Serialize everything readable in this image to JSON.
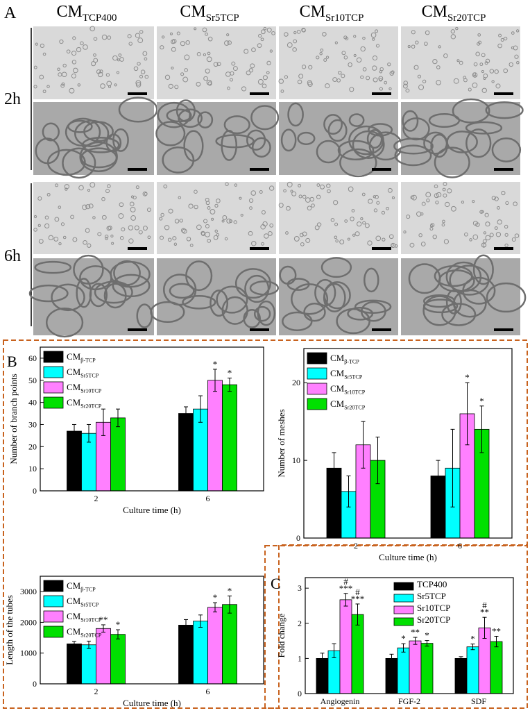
{
  "panel_A": {
    "label": "A",
    "columns": [
      {
        "main": "CM",
        "sub": "TCP400"
      },
      {
        "main": "CM",
        "sub": "Sr5TCP"
      },
      {
        "main": "CM",
        "sub": "Sr10TCP"
      },
      {
        "main": "CM",
        "sub": "Sr20TCP"
      }
    ],
    "rows": [
      "2h",
      "6h"
    ]
  },
  "chart_data": [
    {
      "type": "bar",
      "panel": "B",
      "y_label": "Number of branch points",
      "x_label": "Culture time (h)",
      "categories": [
        "2",
        "6"
      ],
      "ylim": [
        0,
        65
      ],
      "yticks": [
        0,
        10,
        20,
        30,
        40,
        50,
        60
      ],
      "series": [
        {
          "name": "CM",
          "name_sub": "β-TCP",
          "color": "#000000",
          "values": [
            27,
            35
          ],
          "errors": [
            3,
            3
          ],
          "annotations": [
            null,
            null
          ]
        },
        {
          "name": "CM",
          "name_sub": "Sr5TCP",
          "color": "#00ffff",
          "values": [
            26,
            37
          ],
          "errors": [
            4,
            6
          ],
          "annotations": [
            null,
            null
          ]
        },
        {
          "name": "CM",
          "name_sub": "Sr10TCP",
          "color": "#ff80ff",
          "values": [
            31,
            50
          ],
          "errors": [
            6,
            5
          ],
          "annotations": [
            null,
            [
              "*"
            ]
          ]
        },
        {
          "name": "CM",
          "name_sub": "Sr20TCP",
          "color": "#00e000",
          "values": [
            33,
            48
          ],
          "errors": [
            4,
            3
          ],
          "annotations": [
            null,
            [
              "*"
            ]
          ]
        }
      ]
    },
    {
      "type": "bar",
      "y_label": "Number of meshes",
      "x_label": "Culture time (h)",
      "categories": [
        "2",
        "6"
      ],
      "ylim": [
        0,
        24.4
      ],
      "yticks": [
        0,
        10,
        20
      ],
      "series": [
        {
          "name": "CM",
          "name_sub": "β-TCP",
          "color": "#000000",
          "values": [
            9,
            8
          ],
          "errors": [
            2,
            2
          ],
          "annotations": [
            null,
            null
          ]
        },
        {
          "name": "CM",
          "name_sub": "Sr5TCP",
          "color": "#00ffff",
          "values": [
            6,
            9
          ],
          "errors": [
            2,
            5
          ],
          "annotations": [
            null,
            null
          ]
        },
        {
          "name": "CM",
          "name_sub": "Sr10TCP",
          "color": "#ff80ff",
          "values": [
            12,
            16
          ],
          "errors": [
            3,
            4
          ],
          "annotations": [
            null,
            [
              "*"
            ]
          ]
        },
        {
          "name": "CM",
          "name_sub": "Sr20TCP",
          "color": "#00e000",
          "values": [
            10,
            14
          ],
          "errors": [
            3,
            3
          ],
          "annotations": [
            null,
            [
              "*"
            ]
          ]
        }
      ]
    },
    {
      "type": "bar",
      "y_label": "Length of the tubes",
      "x_label": "Culture time (h)",
      "categories": [
        "2",
        "6"
      ],
      "ylim": [
        0,
        3500
      ],
      "yticks": [
        0,
        1000,
        2000,
        3000
      ],
      "series": [
        {
          "name": "CM",
          "name_sub": "β-TCP",
          "color": "#000000",
          "values": [
            1300,
            1910
          ],
          "errors": [
            80,
            180
          ],
          "annotations": [
            null,
            null
          ]
        },
        {
          "name": "CM",
          "name_sub": "Sr5TCP",
          "color": "#00ffff",
          "values": [
            1270,
            2040
          ],
          "errors": [
            120,
            200
          ],
          "annotations": [
            null,
            null
          ]
        },
        {
          "name": "CM",
          "name_sub": "Sr10TCP",
          "color": "#ff80ff",
          "values": [
            1800,
            2490
          ],
          "errors": [
            120,
            150
          ],
          "annotations": [
            [
              "**"
            ],
            [
              "*"
            ]
          ]
        },
        {
          "name": "CM",
          "name_sub": "Sr20TCP",
          "color": "#00e000",
          "values": [
            1610,
            2580
          ],
          "errors": [
            150,
            280
          ],
          "annotations": [
            [
              "*"
            ],
            [
              "*"
            ]
          ]
        }
      ]
    },
    {
      "type": "bar",
      "panel": "C",
      "y_label": "Fold change",
      "categories": [
        "Angiogenin",
        "FGF-2",
        "SDF"
      ],
      "ylim": [
        0,
        3.3
      ],
      "yticks": [
        0,
        1,
        2,
        3
      ],
      "series": [
        {
          "name": "TCP400",
          "color": "#000000",
          "values": [
            1,
            1,
            1
          ],
          "errors": [
            0.15,
            0.12,
            0.05
          ],
          "annotations": [
            null,
            null,
            null
          ]
        },
        {
          "name": "Sr5TCP",
          "color": "#00ffff",
          "values": [
            1.22,
            1.3,
            1.33
          ],
          "errors": [
            0.2,
            0.12,
            0.08
          ],
          "annotations": [
            null,
            [
              "*"
            ],
            [
              "*"
            ]
          ]
        },
        {
          "name": "Sr10TCP",
          "color": "#ff80ff",
          "values": [
            2.67,
            1.5,
            1.87
          ],
          "errors": [
            0.18,
            0.1,
            0.3
          ],
          "annotations": [
            [
              "#",
              "***"
            ],
            [
              "**"
            ],
            [
              "#",
              "**"
            ]
          ]
        },
        {
          "name": "Sr20TCP",
          "color": "#00e000",
          "values": [
            2.25,
            1.43,
            1.48
          ],
          "errors": [
            0.3,
            0.08,
            0.15
          ],
          "annotations": [
            [
              "#",
              "***"
            ],
            [
              "*"
            ],
            [
              "**"
            ]
          ]
        }
      ]
    }
  ]
}
